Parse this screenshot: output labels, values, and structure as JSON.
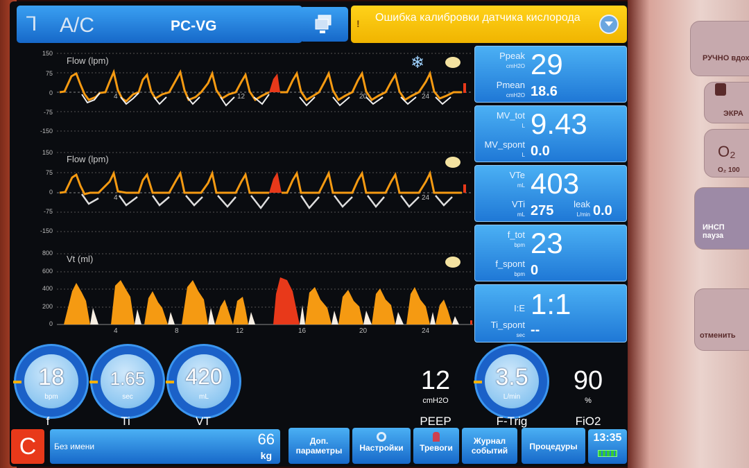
{
  "mode": {
    "glyph": "⅂",
    "name": "A/C",
    "submode": "PC-VG"
  },
  "alarm": {
    "icon": "!",
    "text": "Ошибка калибровки датчика кислорода"
  },
  "waves": [
    {
      "label": "Flow (lpm)",
      "yticks": [
        "150",
        "75",
        "0",
        "-75",
        "-150"
      ],
      "xticks": [
        "4",
        "8",
        "12",
        "16",
        "20",
        "24"
      ]
    },
    {
      "label": "Flow (lpm)",
      "yticks": [
        "150",
        "75",
        "0",
        "-75",
        "-150"
      ],
      "xticks": [
        "4",
        "8",
        "12",
        "16",
        "20",
        "24"
      ]
    },
    {
      "label": "Vt (ml)",
      "yticks": [
        "800",
        "600",
        "400",
        "200",
        "0"
      ],
      "xticks": [
        "4",
        "8",
        "12",
        "16",
        "20",
        "24"
      ]
    }
  ],
  "icons": {
    "freeze": "❄",
    "palette": "palette-icon"
  },
  "monitors": {
    "ppeak": {
      "label": "Ppeak",
      "unit": "cmH2O",
      "value": "29"
    },
    "pmean": {
      "label": "Pmean",
      "unit": "cmH2O",
      "value": "18.6"
    },
    "mv_tot": {
      "label": "MV_tot",
      "unit": "L",
      "value": "9.43"
    },
    "mv_spont": {
      "label": "MV_spont",
      "unit": "L",
      "value": "0.0"
    },
    "vte": {
      "label": "VTe",
      "unit": "mL",
      "value": "403"
    },
    "vti": {
      "label": "VTi",
      "unit": "mL",
      "value": "275"
    },
    "leak": {
      "label": "leak",
      "unit": "L/min",
      "value": "0.0"
    },
    "f_tot": {
      "label": "f_tot",
      "unit": "bpm",
      "value": "23"
    },
    "f_spont": {
      "label": "f_spont",
      "unit": "bpm",
      "value": "0"
    },
    "ie": {
      "label": "I:E",
      "value": "1:1"
    },
    "ti_spont": {
      "label": "Ti_spont",
      "unit": "sec",
      "value": "--"
    }
  },
  "settings": {
    "f": {
      "value": "18",
      "unit": "bpm",
      "label": "f"
    },
    "ti": {
      "value": "1.65",
      "unit": "sec",
      "label": "Ti"
    },
    "vt": {
      "value": "420",
      "unit": "mL",
      "label": "VT"
    },
    "peep": {
      "value": "12",
      "unit": "cmH2O",
      "label": "PEEP"
    },
    "ftrig": {
      "value": "3.5",
      "unit": "L/min",
      "label": "F-Trig"
    },
    "fio2": {
      "value": "90",
      "unit": "%",
      "label": "FiO2"
    }
  },
  "bottom": {
    "patient_type": "C",
    "patient_name": "Без имени",
    "weight": "66",
    "weight_unit": "kg",
    "extra_params": "Доп. параметры",
    "settings_btn": "Настройки",
    "alarms_btn": "Тревоги",
    "event_log": "Журнал событий",
    "procedures": "Процедуры",
    "time": "13:35"
  },
  "bezel": {
    "manual_breath": "РУЧНО вдох",
    "screen_lock": "ЭКРА",
    "o2": "O₂",
    "o2_sub": "O₂  100",
    "insp_pause": "ИНСП пауза",
    "cancel": "отменить"
  },
  "colors": {
    "accent_blue": "#1f78d6",
    "alarm_yellow": "#ffd21a",
    "wave_orange": "#f59a12",
    "wave_red": "#e8391a"
  }
}
